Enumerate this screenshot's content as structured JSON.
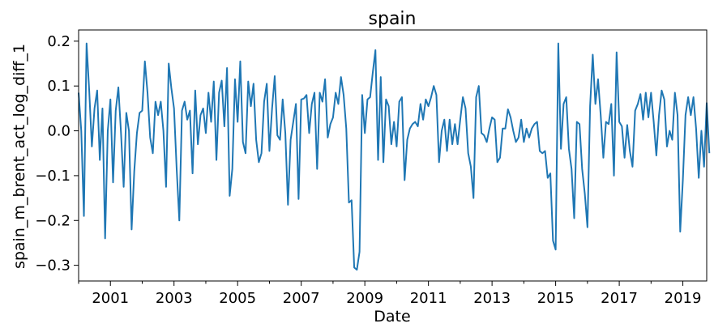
{
  "chart_data": {
    "type": "line",
    "title": "spain",
    "xlabel": "Date",
    "ylabel": "spain_m_brent_act_log_diff_1",
    "x_start": "2000-01",
    "x_end": "2019-10",
    "frequency": "monthly",
    "xlim": [
      "2000-01",
      "2019-10"
    ],
    "ylim": [
      -0.335,
      0.225
    ],
    "x_ticks": [
      "2001",
      "2003",
      "2005",
      "2007",
      "2009",
      "2011",
      "2013",
      "2015",
      "2017",
      "2019"
    ],
    "y_ticks": [
      "−0.3",
      "−0.2",
      "−0.1",
      "0.0",
      "0.1",
      "0.2"
    ],
    "grid": false,
    "series": [
      {
        "color": "#1f77b4",
        "values": [
          0.085,
          0.0,
          -0.19,
          0.195,
          0.09,
          -0.035,
          0.05,
          0.09,
          -0.065,
          0.05,
          -0.24,
          0.0,
          0.07,
          -0.115,
          0.045,
          0.097,
          -0.005,
          -0.125,
          0.04,
          0.0,
          -0.22,
          -0.09,
          -0.005,
          0.04,
          0.045,
          0.155,
          0.085,
          -0.015,
          -0.05,
          0.065,
          0.035,
          0.065,
          0.0,
          -0.125,
          0.15,
          0.095,
          0.05,
          -0.085,
          -0.2,
          0.045,
          0.065,
          0.025,
          0.045,
          -0.095,
          0.09,
          -0.03,
          0.035,
          0.05,
          -0.005,
          0.085,
          0.02,
          0.11,
          -0.065,
          0.085,
          0.112,
          0.01,
          0.14,
          -0.145,
          -0.085,
          0.115,
          0.02,
          0.155,
          -0.025,
          -0.05,
          0.11,
          0.055,
          0.105,
          -0.02,
          -0.07,
          -0.05,
          0.065,
          0.105,
          -0.045,
          0.05,
          0.122,
          -0.01,
          -0.02,
          0.07,
          -0.005,
          -0.165,
          -0.02,
          0.02,
          0.06,
          -0.152,
          0.07,
          0.072,
          0.08,
          -0.005,
          0.06,
          0.085,
          -0.085,
          0.085,
          0.065,
          0.115,
          -0.015,
          0.015,
          0.03,
          0.085,
          0.06,
          0.12,
          0.08,
          0.005,
          -0.16,
          -0.155,
          -0.305,
          -0.31,
          -0.27,
          0.08,
          -0.005,
          0.07,
          0.075,
          0.13,
          0.18,
          -0.065,
          0.12,
          -0.07,
          0.07,
          0.055,
          -0.03,
          0.02,
          -0.035,
          0.065,
          0.075,
          -0.11,
          -0.02,
          0.005,
          0.015,
          0.02,
          0.01,
          0.06,
          0.025,
          0.07,
          0.055,
          0.075,
          0.1,
          0.08,
          -0.07,
          0.0,
          0.025,
          -0.045,
          0.025,
          -0.03,
          0.015,
          -0.03,
          0.025,
          0.075,
          0.05,
          -0.05,
          -0.08,
          -0.15,
          0.075,
          0.1,
          -0.005,
          -0.01,
          -0.025,
          0.005,
          0.03,
          0.025,
          -0.07,
          -0.06,
          0.005,
          0.005,
          0.048,
          0.03,
          0.0,
          -0.025,
          -0.015,
          0.025,
          -0.025,
          0.005,
          -0.015,
          0.005,
          0.015,
          0.02,
          -0.045,
          -0.05,
          -0.045,
          -0.105,
          -0.095,
          -0.245,
          -0.265,
          0.195,
          -0.04,
          0.06,
          0.075,
          -0.04,
          -0.085,
          -0.195,
          0.02,
          0.015,
          -0.085,
          -0.14,
          -0.215,
          0.055,
          0.17,
          0.06,
          0.115,
          0.035,
          -0.06,
          0.02,
          0.015,
          0.06,
          -0.1,
          0.175,
          0.02,
          0.01,
          -0.06,
          0.013,
          -0.045,
          -0.08,
          0.045,
          0.06,
          0.082,
          0.025,
          0.085,
          0.03,
          0.085,
          0.02,
          -0.055,
          0.035,
          0.09,
          0.07,
          -0.035,
          0.0,
          -0.02,
          0.085,
          0.035,
          -0.225,
          -0.11,
          0.035,
          0.075,
          0.035,
          0.075,
          0.005,
          -0.105,
          0.0,
          -0.08,
          0.062,
          -0.05
        ]
      }
    ]
  }
}
